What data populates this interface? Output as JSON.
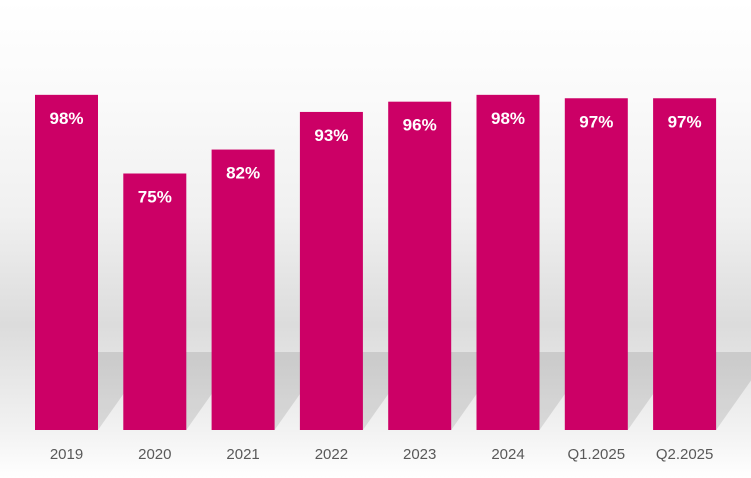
{
  "chart_data": {
    "type": "bar",
    "categories": [
      "2019",
      "2020",
      "2021",
      "2022",
      "2023",
      "2024",
      "Q1.2025",
      "Q2.2025"
    ],
    "values": [
      98,
      75,
      82,
      93,
      96,
      98,
      97,
      97
    ],
    "value_labels": [
      "98%",
      "75%",
      "82%",
      "93%",
      "96%",
      "98%",
      "97%",
      "97%"
    ],
    "title": "",
    "xlabel": "",
    "ylabel": "",
    "ylim": [
      0,
      100
    ],
    "grid": false,
    "legend": "none",
    "bar_color": "#cc0066",
    "label_color": "#ffffff",
    "tick_color": "#595959"
  }
}
